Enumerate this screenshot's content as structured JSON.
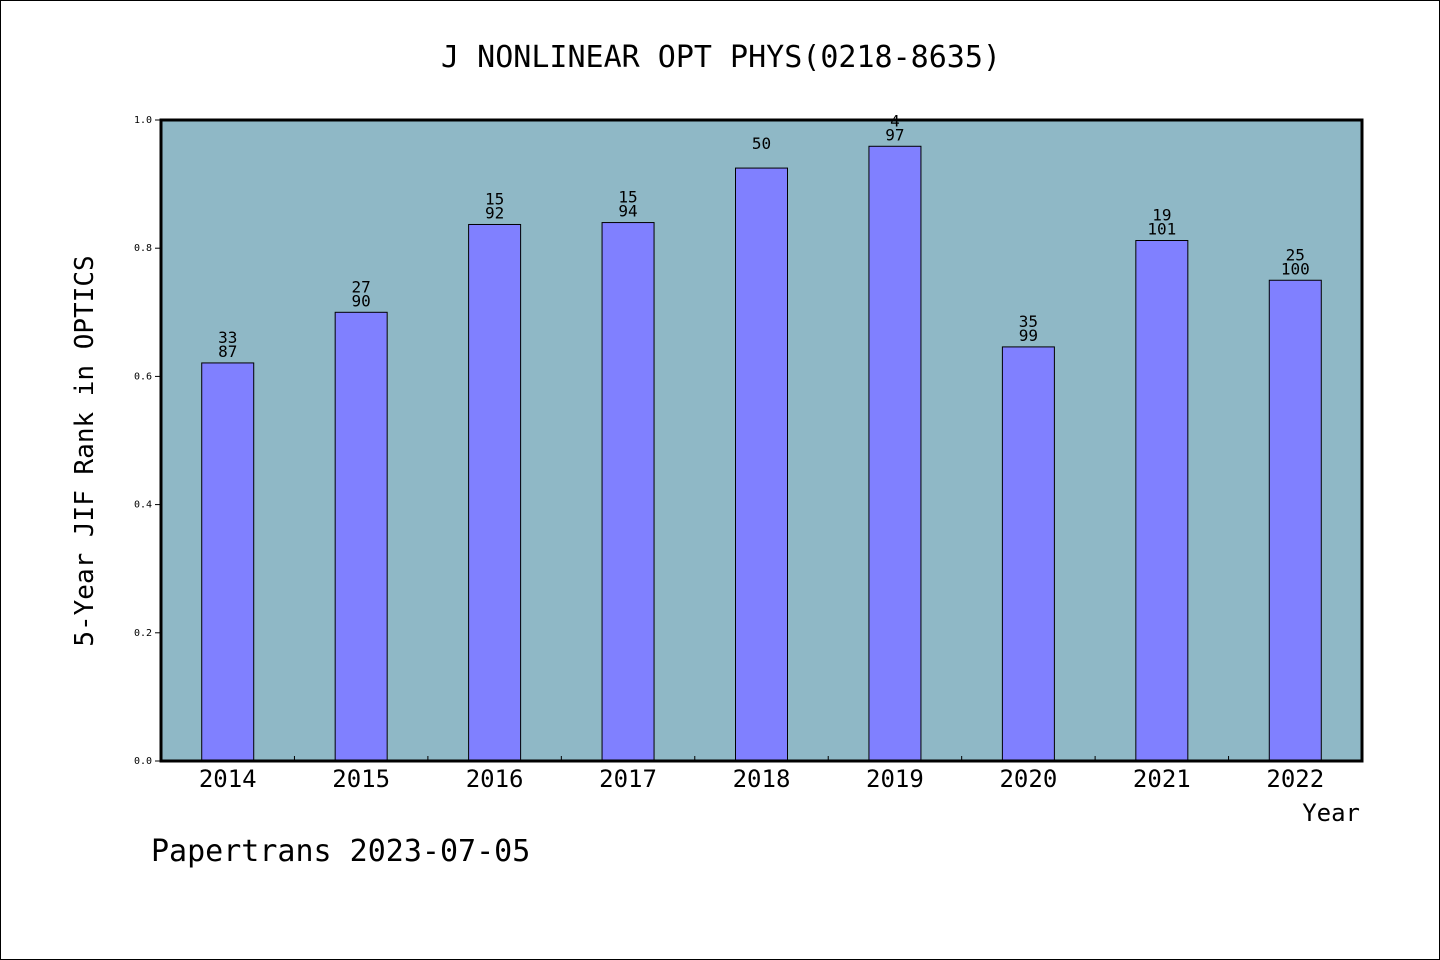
{
  "footer": "Papertrans 2023-07-05",
  "chart_data": {
    "type": "bar",
    "title": "J NONLINEAR OPT PHYS(0218-8635)",
    "xlabel": "Year",
    "ylabel": "5-Year JIF Rank in OPTICS",
    "categories": [
      "2014",
      "2015",
      "2016",
      "2017",
      "2018",
      "2019",
      "2020",
      "2021",
      "2022"
    ],
    "values": [
      0.621,
      0.7,
      0.837,
      0.84,
      0.925,
      0.959,
      0.646,
      0.812,
      0.75
    ],
    "rank": [
      "33",
      "27",
      "15",
      "15",
      "",
      "4",
      "35",
      "19",
      "25"
    ],
    "total": [
      "87",
      "90",
      "92",
      "94",
      "50",
      "97",
      "99",
      "101",
      "100"
    ],
    "ylim": [
      0,
      1.0
    ],
    "yticks": [
      "0.0",
      "0.2",
      "0.4",
      "0.6",
      "0.8",
      "1.0"
    ],
    "grid": false,
    "colors": {
      "plot_bg": "#8fb8c6",
      "bar": "#8080ff",
      "frame": "#000000"
    }
  }
}
